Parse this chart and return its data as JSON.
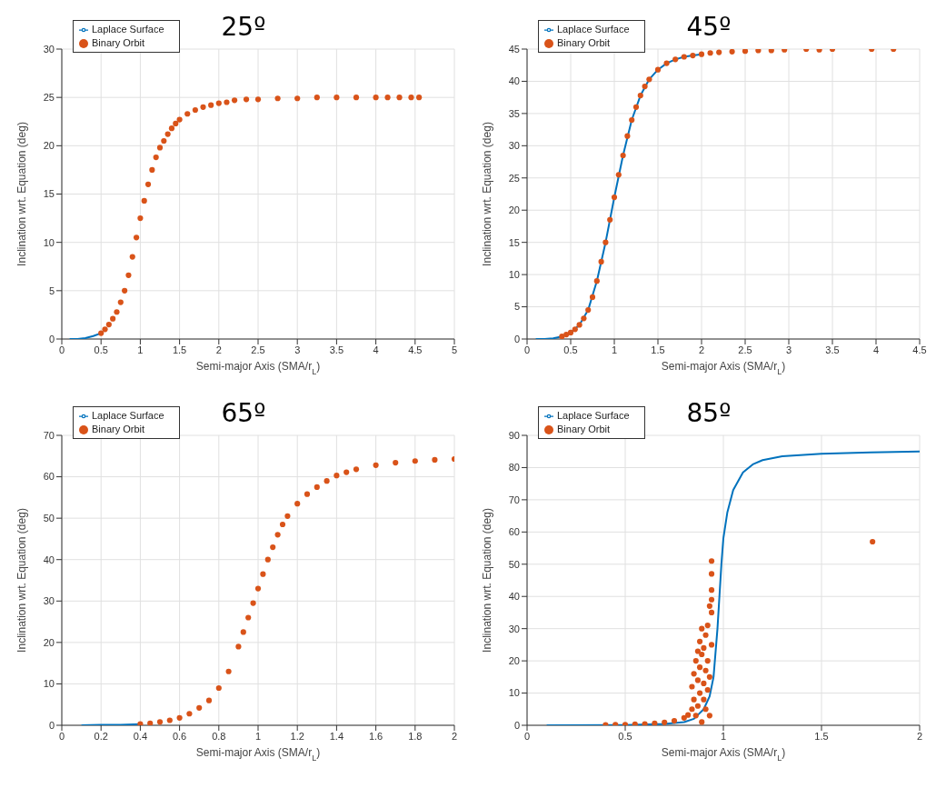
{
  "chart_data": [
    {
      "type": "scatter",
      "xlabel": "Semi-major Axis (SMA/r$_{L}$)",
      "ylabel": "Inclination wrt. Equation (deg)",
      "annotations": [
        "25º"
      ],
      "xlim": [
        0,
        5
      ],
      "xticks": [
        0,
        0.5,
        1,
        1.5,
        2,
        2.5,
        3,
        3.5,
        4,
        4.5,
        5
      ],
      "ylim": [
        0,
        30
      ],
      "yticks": [
        0,
        5,
        10,
        15,
        20,
        25,
        30
      ],
      "grid": true,
      "legend": "top left",
      "series": [
        {
          "name": "Laplace Surface",
          "type": "line",
          "color": "#0072bd",
          "x": [
            0.1,
            0.2,
            0.3,
            0.4,
            0.5
          ],
          "values": [
            0,
            0,
            0.1,
            0.3,
            0.6
          ]
        },
        {
          "name": "Binary Orbit",
          "marker": "circle",
          "color": "#d95319",
          "x": [
            0.5,
            0.55,
            0.6,
            0.65,
            0.7,
            0.75,
            0.8,
            0.85,
            0.9,
            0.95,
            1.0,
            1.05,
            1.1,
            1.15,
            1.2,
            1.25,
            1.3,
            1.35,
            1.4,
            1.45,
            1.5,
            1.6,
            1.7,
            1.8,
            1.9,
            2.0,
            2.1,
            2.2,
            2.35,
            2.5,
            2.75,
            3.0,
            3.25,
            3.5,
            3.75,
            4.0,
            4.15,
            4.3,
            4.45,
            4.55
          ],
          "values": [
            0.6,
            1.0,
            1.5,
            2.1,
            2.8,
            3.8,
            5.0,
            6.6,
            8.5,
            10.5,
            12.5,
            14.3,
            16,
            17.5,
            18.8,
            19.8,
            20.5,
            21.2,
            21.8,
            22.3,
            22.7,
            23.3,
            23.7,
            24,
            24.2,
            24.4,
            24.5,
            24.7,
            24.8,
            24.8,
            24.9,
            24.9,
            25,
            25,
            25,
            25,
            25,
            25,
            25,
            25
          ]
        }
      ]
    },
    {
      "type": "scatter",
      "xlabel": "Semi-major Axis (SMA/r$_{L}$)",
      "ylabel": "Inclination wrt. Equation (deg)",
      "annotations": [
        "45º"
      ],
      "xlim": [
        0,
        4.5
      ],
      "xticks": [
        0,
        0.5,
        1,
        1.5,
        2,
        2.5,
        3,
        3.5,
        4,
        4.5
      ],
      "ylim": [
        0,
        45
      ],
      "yticks": [
        0,
        5,
        10,
        15,
        20,
        25,
        30,
        35,
        40,
        45
      ],
      "grid": true,
      "legend": "top left",
      "series": [
        {
          "name": "Laplace Surface",
          "type": "line",
          "color": "#0072bd",
          "x": [
            0.1,
            0.2,
            0.3,
            0.4,
            0.5,
            0.6,
            0.7,
            0.8,
            0.9,
            1.0,
            1.1,
            1.2,
            1.3,
            1.4,
            1.5,
            1.6,
            1.7,
            1.8,
            1.9,
            2.0
          ],
          "values": [
            0,
            0,
            0.1,
            0.4,
            1,
            2.2,
            4.5,
            9,
            15,
            22,
            28.5,
            34,
            37.8,
            40.3,
            41.8,
            42.8,
            43.4,
            43.8,
            44,
            44.2
          ]
        },
        {
          "name": "Binary Orbit",
          "marker": "circle",
          "color": "#d95319",
          "x": [
            0.4,
            0.45,
            0.5,
            0.55,
            0.6,
            0.65,
            0.7,
            0.75,
            0.8,
            0.85,
            0.9,
            0.95,
            1.0,
            1.05,
            1.1,
            1.15,
            1.2,
            1.25,
            1.3,
            1.35,
            1.4,
            1.5,
            1.6,
            1.7,
            1.8,
            1.9,
            2.0,
            2.1,
            2.2,
            2.35,
            2.5,
            2.65,
            2.8,
            2.95,
            3.2,
            3.35,
            3.5,
            3.95,
            4.2
          ],
          "values": [
            0.4,
            0.7,
            1,
            1.5,
            2.2,
            3.2,
            4.5,
            6.5,
            9,
            12,
            15,
            18.5,
            22,
            25.5,
            28.5,
            31.5,
            34,
            36,
            37.8,
            39.2,
            40.3,
            41.8,
            42.8,
            43.4,
            43.8,
            44,
            44.2,
            44.4,
            44.5,
            44.6,
            44.7,
            44.8,
            44.8,
            44.9,
            45,
            44.9,
            45,
            45,
            45
          ]
        }
      ]
    },
    {
      "type": "scatter",
      "xlabel": "Semi-major Axis (SMA/r$_{L}$)",
      "ylabel": "Inclination wrt. Equation (deg)",
      "annotations": [
        "65º"
      ],
      "xlim": [
        0,
        2
      ],
      "xticks": [
        0,
        0.2,
        0.4,
        0.6,
        0.8,
        1,
        1.2,
        1.4,
        1.6,
        1.8,
        2
      ],
      "ylim": [
        0,
        70
      ],
      "yticks": [
        0,
        10,
        20,
        30,
        40,
        50,
        60,
        70
      ],
      "grid": true,
      "legend": "top left",
      "series": [
        {
          "name": "Laplace Surface",
          "type": "line",
          "color": "#0072bd",
          "x": [
            0.1,
            0.2,
            0.3,
            0.4
          ],
          "values": [
            0,
            0.1,
            0.1,
            0.3
          ]
        },
        {
          "name": "Binary Orbit",
          "marker": "circle",
          "color": "#d95319",
          "x": [
            0.4,
            0.45,
            0.5,
            0.55,
            0.6,
            0.65,
            0.7,
            0.75,
            0.8,
            0.85,
            0.9,
            0.925,
            0.95,
            0.975,
            1.0,
            1.025,
            1.05,
            1.075,
            1.1,
            1.125,
            1.15,
            1.2,
            1.25,
            1.3,
            1.35,
            1.4,
            1.45,
            1.5,
            1.6,
            1.7,
            1.8,
            1.9,
            2.0
          ],
          "values": [
            0.3,
            0.5,
            0.8,
            1.2,
            1.8,
            2.8,
            4.2,
            6,
            9,
            13,
            19,
            22.5,
            26,
            29.5,
            33,
            36.5,
            40,
            43,
            46,
            48.5,
            50.5,
            53.5,
            55.8,
            57.5,
            59,
            60.3,
            61.1,
            61.8,
            62.8,
            63.4,
            63.8,
            64.1,
            64.3
          ]
        }
      ]
    },
    {
      "type": "scatter",
      "xlabel": "Semi-major Axis (SMA/r$_{L}$)",
      "ylabel": "Inclination wrt. Equation (deg)",
      "annotations": [
        "85º"
      ],
      "xlim": [
        0,
        2
      ],
      "xticks": [
        0,
        0.5,
        1,
        1.5,
        2
      ],
      "ylim": [
        0,
        90
      ],
      "yticks": [
        0,
        10,
        20,
        30,
        40,
        50,
        60,
        70,
        80,
        90
      ],
      "grid": true,
      "legend": "top left",
      "series": [
        {
          "name": "Laplace Surface",
          "type": "line",
          "color": "#0072bd",
          "x": [
            0.1,
            0.5,
            0.7,
            0.8,
            0.85,
            0.9,
            0.93,
            0.95,
            0.97,
            0.99,
            1.0,
            1.02,
            1.05,
            1.1,
            1.15,
            1.2,
            1.3,
            1.5,
            1.75,
            2.0
          ],
          "values": [
            0,
            0.1,
            0.4,
            1,
            2,
            5,
            9,
            15,
            30,
            50,
            58,
            66,
            73,
            78.5,
            81,
            82.3,
            83.5,
            84.3,
            84.7,
            85
          ]
        },
        {
          "name": "Binary Orbit",
          "marker": "circle",
          "color": "#d95319",
          "x": [
            0.4,
            0.45,
            0.5,
            0.55,
            0.6,
            0.65,
            0.7,
            0.75,
            0.8,
            0.82,
            0.84,
            0.84,
            0.85,
            0.85,
            0.86,
            0.86,
            0.87,
            0.87,
            0.87,
            0.88,
            0.88,
            0.88,
            0.89,
            0.89,
            0.89,
            0.9,
            0.9,
            0.9,
            0.91,
            0.91,
            0.91,
            0.92,
            0.92,
            0.92,
            0.93,
            0.93,
            0.93,
            0.94,
            0.94,
            0.94,
            0.94,
            0.94,
            0.94,
            1.76
          ],
          "values": [
            0.1,
            0.2,
            0.2,
            0.3,
            0.4,
            0.6,
            0.9,
            1.4,
            2.3,
            3.2,
            5,
            12,
            8,
            16,
            20,
            3,
            23,
            14,
            6,
            18,
            26,
            10,
            22,
            30,
            1,
            13,
            24,
            8,
            28,
            17,
            5,
            20,
            31,
            11,
            37,
            15,
            3,
            51,
            47,
            42,
            39,
            35,
            25,
            57
          ]
        }
      ]
    }
  ]
}
